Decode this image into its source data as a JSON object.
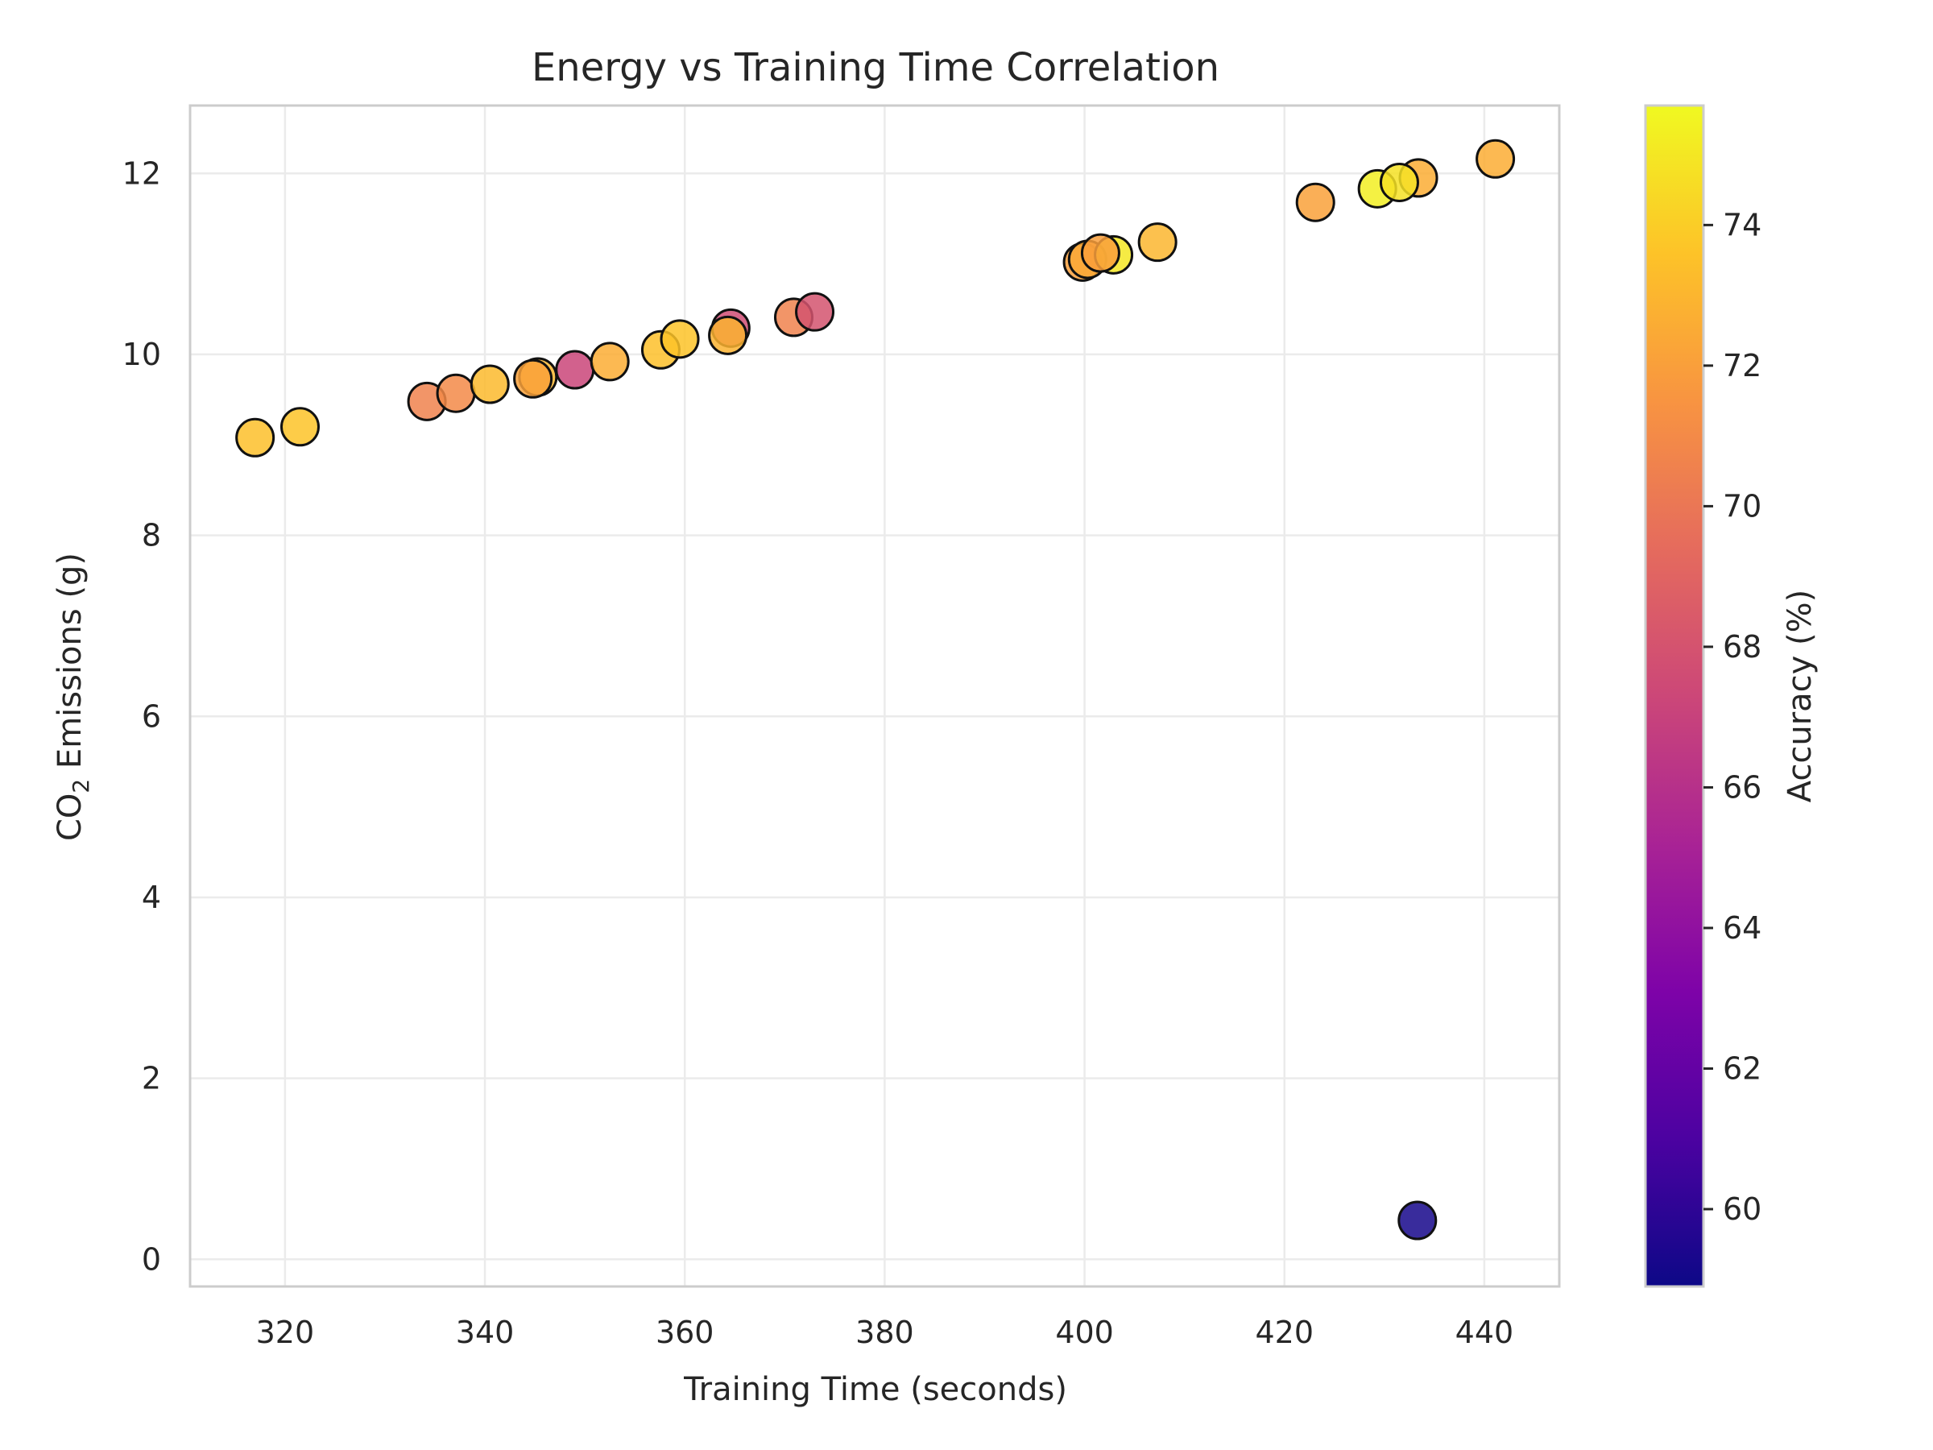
{
  "chart_data": {
    "type": "scatter",
    "title": "Energy vs Training Time Correlation",
    "xlabel": "Training Time (seconds)",
    "ylabel_parts": [
      "CO",
      "2",
      " Emissions (g)"
    ],
    "xlim": [
      310.5,
      447.5
    ],
    "ylim": [
      -0.3,
      12.75
    ],
    "xticks": [
      320,
      340,
      360,
      380,
      400,
      420,
      440
    ],
    "yticks": [
      0,
      2,
      4,
      6,
      8,
      10,
      12
    ],
    "grid": true,
    "colorbar": {
      "label": "Accuracy (%)",
      "colormap": "plasma",
      "range": [
        58.9,
        75.7
      ],
      "ticks": [
        60,
        62,
        64,
        66,
        68,
        70,
        72,
        74
      ]
    },
    "points": [
      {
        "x": 317.0,
        "y": 9.08,
        "accuracy": 73.4
      },
      {
        "x": 321.5,
        "y": 9.2,
        "accuracy": 73.6
      },
      {
        "x": 334.2,
        "y": 9.48,
        "accuracy": 70.6
      },
      {
        "x": 337.1,
        "y": 9.57,
        "accuracy": 71.0
      },
      {
        "x": 340.5,
        "y": 9.67,
        "accuracy": 73.2
      },
      {
        "x": 345.3,
        "y": 9.75,
        "accuracy": 73.0
      },
      {
        "x": 344.8,
        "y": 9.73,
        "accuracy": 72.1
      },
      {
        "x": 349.0,
        "y": 9.83,
        "accuracy": 67.2
      },
      {
        "x": 352.5,
        "y": 9.92,
        "accuracy": 72.6
      },
      {
        "x": 357.6,
        "y": 10.05,
        "accuracy": 73.4
      },
      {
        "x": 359.5,
        "y": 10.17,
        "accuracy": 73.6
      },
      {
        "x": 364.6,
        "y": 10.29,
        "accuracy": 67.6
      },
      {
        "x": 364.3,
        "y": 10.21,
        "accuracy": 72.9
      },
      {
        "x": 370.9,
        "y": 10.41,
        "accuracy": 70.6
      },
      {
        "x": 373.0,
        "y": 10.47,
        "accuracy": 68.0
      },
      {
        "x": 399.8,
        "y": 11.02,
        "accuracy": 72.0
      },
      {
        "x": 400.3,
        "y": 11.05,
        "accuracy": 72.4
      },
      {
        "x": 402.9,
        "y": 11.1,
        "accuracy": 75.0
      },
      {
        "x": 401.6,
        "y": 11.12,
        "accuracy": 72.0
      },
      {
        "x": 407.3,
        "y": 11.24,
        "accuracy": 73.0
      },
      {
        "x": 423.1,
        "y": 11.68,
        "accuracy": 72.1
      },
      {
        "x": 429.3,
        "y": 11.83,
        "accuracy": 75.3
      },
      {
        "x": 433.4,
        "y": 11.95,
        "accuracy": 72.6
      },
      {
        "x": 431.5,
        "y": 11.9,
        "accuracy": 74.8
      },
      {
        "x": 441.1,
        "y": 12.16,
        "accuracy": 72.6
      },
      {
        "x": 433.3,
        "y": 0.43,
        "accuracy": 59.2
      }
    ]
  }
}
